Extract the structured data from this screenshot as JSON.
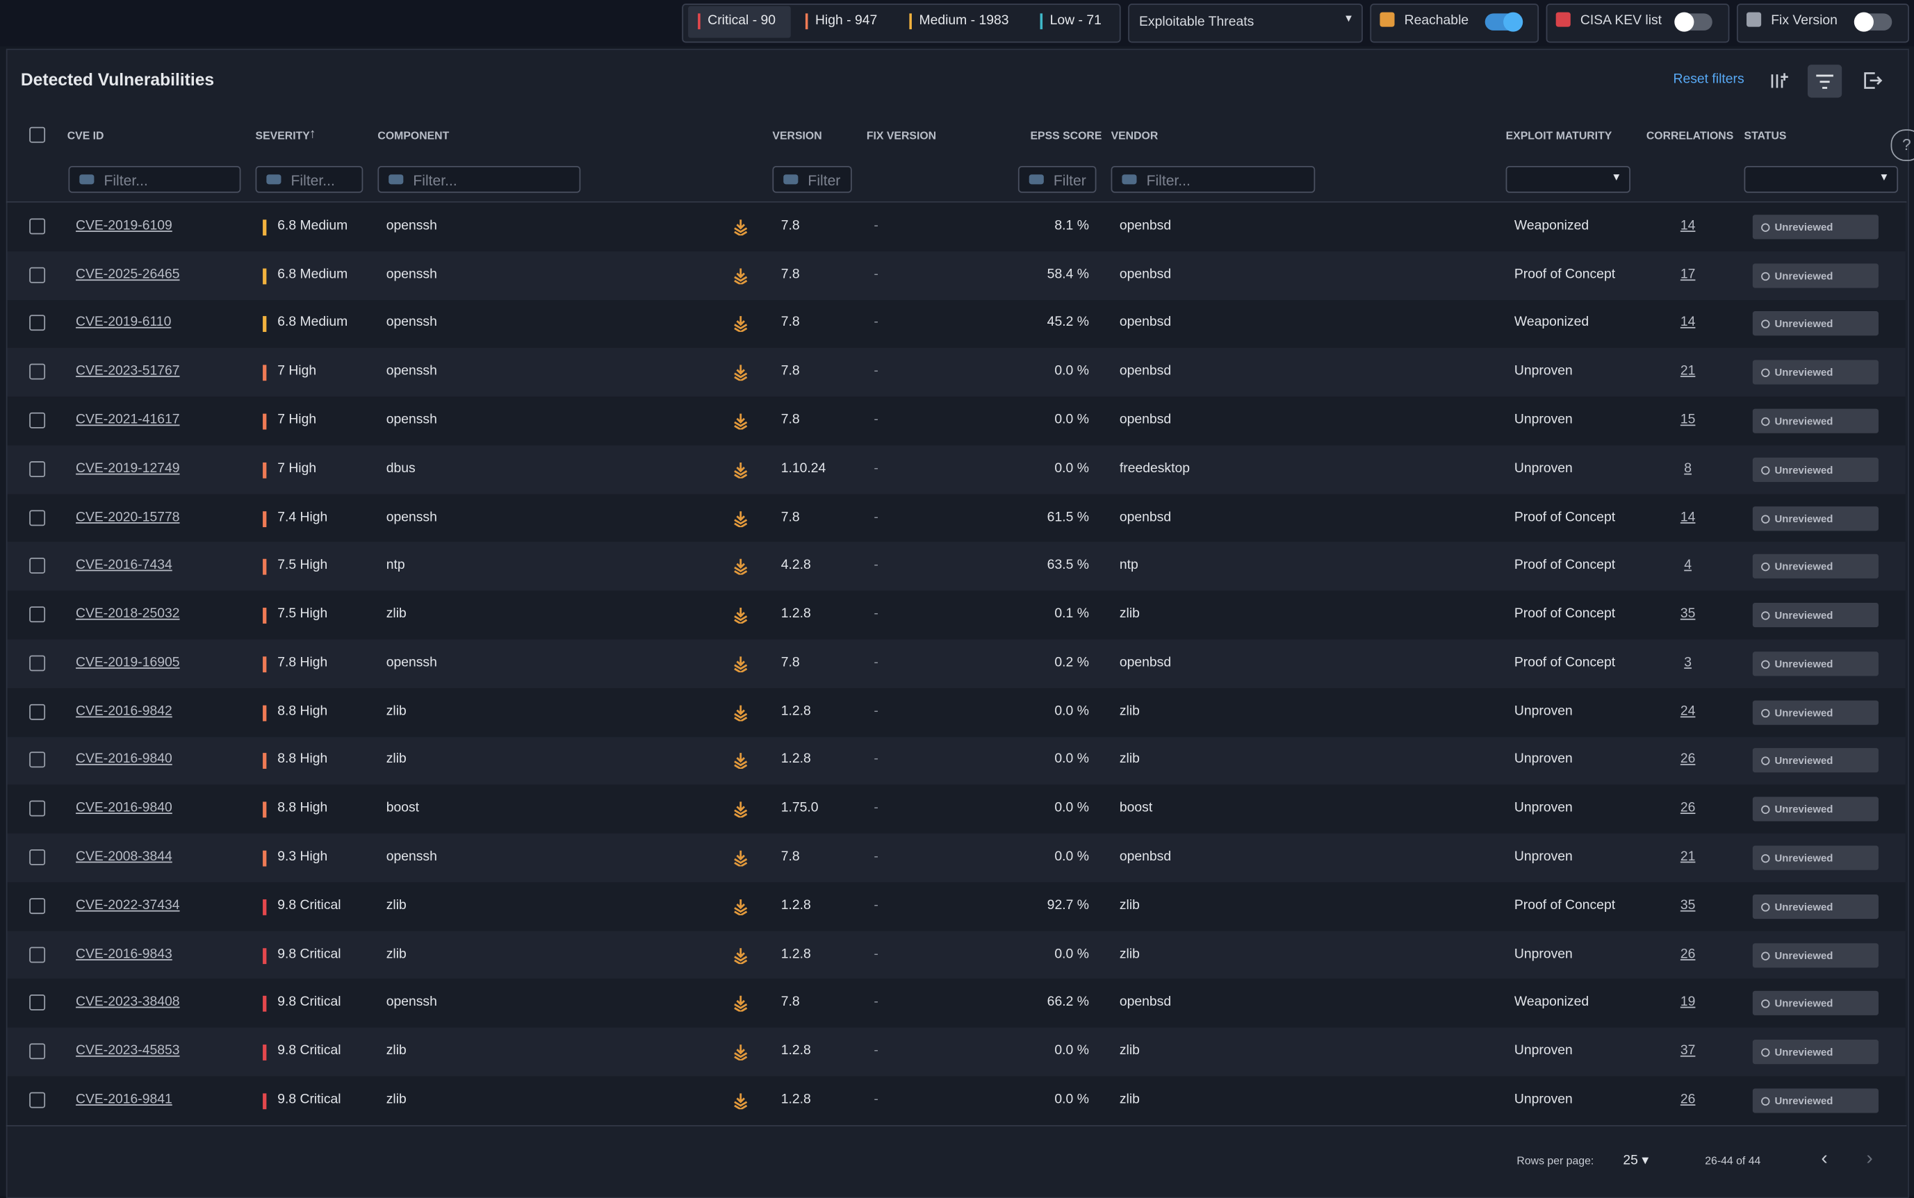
{
  "top_bar": {
    "severity_counts": [
      {
        "label": "Critical - 90",
        "color": "#e5484d"
      },
      {
        "label": "High - 947",
        "color": "#f07b55"
      },
      {
        "label": "Medium - 1983",
        "color": "#f2b23e"
      },
      {
        "label": "Low - 71",
        "color": "#3fb8c9"
      }
    ],
    "threat_filter": "Exploitable Threats",
    "toggles": [
      {
        "label": "Reachable",
        "on": true
      },
      {
        "label": "CISA KEV list",
        "on": false
      },
      {
        "label": "Fix Version",
        "on": false
      }
    ]
  },
  "panel": {
    "title": "Detected Vulnerabilities",
    "reset": "Reset filters"
  },
  "table": {
    "columns": [
      "CVE ID",
      "SEVERITY",
      "COMPONENT",
      "VERSION",
      "FIX VERSION",
      "EPSS SCORE",
      "VENDOR",
      "EXPLOIT MATURITY",
      "CORRELATIONS",
      "STATUS"
    ],
    "filters": [
      "Filter...",
      "Filter...",
      "Filter...",
      "Filter",
      "Filter",
      "Filter..."
    ],
    "rows": [
      {
        "cve": "CVE-2019-6109",
        "severity": "6.8 Medium",
        "severity_color": "#f2b23e",
        "component": "openssh",
        "version": "7.8",
        "fix_version": "-",
        "epss": "8.1 %",
        "vendor": "openbsd",
        "maturity": "Weaponized",
        "correlations": 14,
        "status": "Unreviewed"
      },
      {
        "cve": "CVE-2025-26465",
        "severity": "6.8 Medium",
        "severity_color": "#f2b23e",
        "component": "openssh",
        "version": "7.8",
        "fix_version": "-",
        "epss": "58.4 %",
        "vendor": "openbsd",
        "maturity": "Proof of Concept",
        "correlations": 17,
        "status": "Unreviewed"
      },
      {
        "cve": "CVE-2019-6110",
        "severity": "6.8 Medium",
        "severity_color": "#f2b23e",
        "component": "openssh",
        "version": "7.8",
        "fix_version": "-",
        "epss": "45.2 %",
        "vendor": "openbsd",
        "maturity": "Weaponized",
        "correlations": 14,
        "status": "Unreviewed"
      },
      {
        "cve": "CVE-2023-51767",
        "severity": "7 High",
        "severity_color": "#f07b55",
        "component": "openssh",
        "version": "7.8",
        "fix_version": "-",
        "epss": "0.0 %",
        "vendor": "openbsd",
        "maturity": "Unproven",
        "correlations": 21,
        "status": "Unreviewed"
      },
      {
        "cve": "CVE-2021-41617",
        "severity": "7 High",
        "severity_color": "#f07b55",
        "component": "openssh",
        "version": "7.8",
        "fix_version": "-",
        "epss": "0.0 %",
        "vendor": "openbsd",
        "maturity": "Unproven",
        "correlations": 15,
        "status": "Unreviewed"
      },
      {
        "cve": "CVE-2019-12749",
        "severity": "7 High",
        "severity_color": "#f07b55",
        "component": "dbus",
        "version": "1.10.24",
        "fix_version": "-",
        "epss": "0.0 %",
        "vendor": "freedesktop",
        "maturity": "Unproven",
        "correlations": 8,
        "status": "Unreviewed"
      },
      {
        "cve": "CVE-2020-15778",
        "severity": "7.4 High",
        "severity_color": "#f07b55",
        "component": "openssh",
        "version": "7.8",
        "fix_version": "-",
        "epss": "61.5 %",
        "vendor": "openbsd",
        "maturity": "Proof of Concept",
        "correlations": 14,
        "status": "Unreviewed"
      },
      {
        "cve": "CVE-2016-7434",
        "severity": "7.5 High",
        "severity_color": "#f07b55",
        "component": "ntp",
        "version": "4.2.8",
        "fix_version": "-",
        "epss": "63.5 %",
        "vendor": "ntp",
        "maturity": "Proof of Concept",
        "correlations": 4,
        "status": "Unreviewed"
      },
      {
        "cve": "CVE-2018-25032",
        "severity": "7.5 High",
        "severity_color": "#f07b55",
        "component": "zlib",
        "version": "1.2.8",
        "fix_version": "-",
        "epss": "0.1 %",
        "vendor": "zlib",
        "maturity": "Proof of Concept",
        "correlations": 35,
        "status": "Unreviewed"
      },
      {
        "cve": "CVE-2019-16905",
        "severity": "7.8 High",
        "severity_color": "#f07b55",
        "component": "openssh",
        "version": "7.8",
        "fix_version": "-",
        "epss": "0.2 %",
        "vendor": "openbsd",
        "maturity": "Proof of Concept",
        "correlations": 3,
        "status": "Unreviewed"
      },
      {
        "cve": "CVE-2016-9842",
        "severity": "8.8 High",
        "severity_color": "#f07b55",
        "component": "zlib",
        "version": "1.2.8",
        "fix_version": "-",
        "epss": "0.0 %",
        "vendor": "zlib",
        "maturity": "Unproven",
        "correlations": 24,
        "status": "Unreviewed"
      },
      {
        "cve": "CVE-2016-9840",
        "severity": "8.8 High",
        "severity_color": "#f07b55",
        "component": "zlib",
        "version": "1.2.8",
        "fix_version": "-",
        "epss": "0.0 %",
        "vendor": "zlib",
        "maturity": "Unproven",
        "correlations": 26,
        "status": "Unreviewed"
      },
      {
        "cve": "CVE-2016-9840",
        "severity": "8.8 High",
        "severity_color": "#f07b55",
        "component": "boost",
        "version": "1.75.0",
        "fix_version": "-",
        "epss": "0.0 %",
        "vendor": "boost",
        "maturity": "Unproven",
        "correlations": 26,
        "status": "Unreviewed"
      },
      {
        "cve": "CVE-2008-3844",
        "severity": "9.3 High",
        "severity_color": "#f07b55",
        "component": "openssh",
        "version": "7.8",
        "fix_version": "-",
        "epss": "0.0 %",
        "vendor": "openbsd",
        "maturity": "Unproven",
        "correlations": 21,
        "status": "Unreviewed"
      },
      {
        "cve": "CVE-2022-37434",
        "severity": "9.8 Critical",
        "severity_color": "#e5484d",
        "component": "zlib",
        "version": "1.2.8",
        "fix_version": "-",
        "epss": "92.7 %",
        "vendor": "zlib",
        "maturity": "Proof of Concept",
        "correlations": 35,
        "status": "Unreviewed"
      },
      {
        "cve": "CVE-2016-9843",
        "severity": "9.8 Critical",
        "severity_color": "#e5484d",
        "component": "zlib",
        "version": "1.2.8",
        "fix_version": "-",
        "epss": "0.0 %",
        "vendor": "zlib",
        "maturity": "Unproven",
        "correlations": 26,
        "status": "Unreviewed"
      },
      {
        "cve": "CVE-2023-38408",
        "severity": "9.8 Critical",
        "severity_color": "#e5484d",
        "component": "openssh",
        "version": "7.8",
        "fix_version": "-",
        "epss": "66.2 %",
        "vendor": "openbsd",
        "maturity": "Weaponized",
        "correlations": 19,
        "status": "Unreviewed"
      },
      {
        "cve": "CVE-2023-45853",
        "severity": "9.8 Critical",
        "severity_color": "#e5484d",
        "component": "zlib",
        "version": "1.2.8",
        "fix_version": "-",
        "epss": "0.0 %",
        "vendor": "zlib",
        "maturity": "Unproven",
        "correlations": 37,
        "status": "Unreviewed"
      },
      {
        "cve": "CVE-2016-9841",
        "severity": "9.8 Critical",
        "severity_color": "#e5484d",
        "component": "zlib",
        "version": "1.2.8",
        "fix_version": "-",
        "epss": "0.0 %",
        "vendor": "zlib",
        "maturity": "Unproven",
        "correlations": 26,
        "status": "Unreviewed"
      }
    ]
  },
  "pagination": {
    "rows_per_page_label": "Rows per page:",
    "rows_per_page": "25",
    "range": "26-44 of 44"
  }
}
